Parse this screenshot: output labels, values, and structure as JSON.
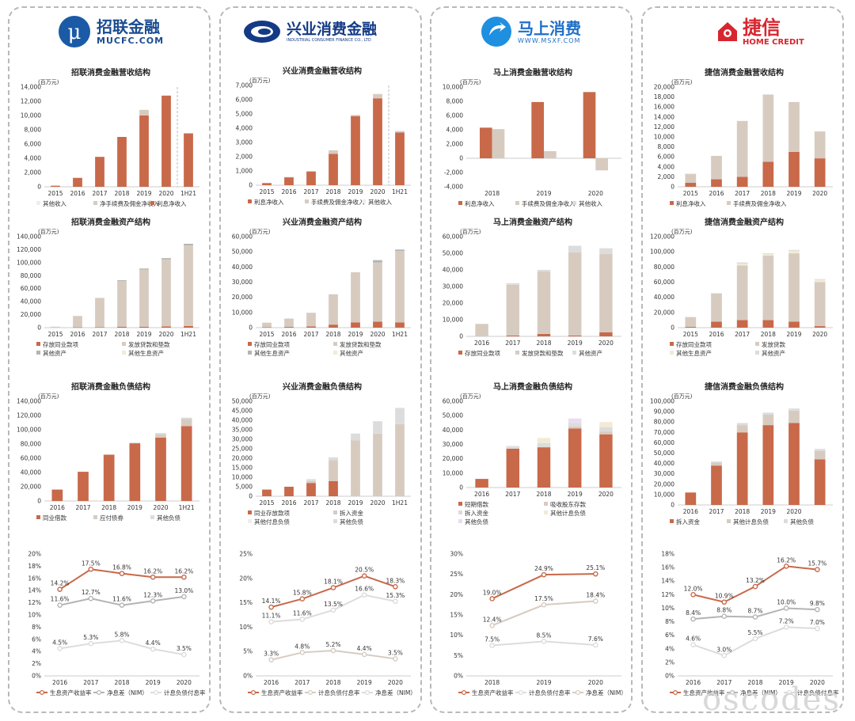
{
  "colors": {
    "interest": "#c8694a",
    "fee": "#d7cbc0",
    "other": "#f0eeea",
    "gray": "#b4b4b4",
    "lightgray": "#dcdcdc",
    "yellow": "#f3ead6",
    "pink": "#eadcf0",
    "dash": "#bbbbbb"
  },
  "logos": [
    {
      "cn": "招联金融",
      "en": "MUCFC.COM",
      "icon": "mu-circle-icon"
    },
    {
      "cn": "兴业消费金融",
      "en": "INDUSTRIAL CONSUMER FINANCE CO., LTD",
      "icon": "swirl-icon"
    },
    {
      "cn": "马上消费",
      "en": "WWW.MSXF.COM",
      "icon": "arrow-drop-icon"
    },
    {
      "cn": "捷信",
      "en": "HOME CREDIT",
      "icon": "house-icon"
    }
  ],
  "watermark": "oscodes",
  "chart_data": [
    {
      "type": "bar",
      "stacked": true,
      "title": "招联消费金融营收结构",
      "unit": "(百万元)",
      "categories": [
        "2015",
        "2016",
        "2017",
        "2018",
        "2019",
        "2020",
        "1H21"
      ],
      "ylim": [
        0,
        14000
      ],
      "ystep": 2000,
      "divider": true,
      "series": [
        {
          "name": "利息净收入",
          "color": "interest",
          "values": [
            150,
            1250,
            4200,
            7000,
            10000,
            12800,
            7500
          ]
        },
        {
          "name": "净手续费及佣金净收入",
          "color": "fee",
          "values": [
            0,
            0,
            0,
            0,
            800,
            0,
            0
          ]
        },
        {
          "name": "其他收入",
          "color": "other",
          "values": [
            0,
            0,
            0,
            0,
            0,
            0,
            0
          ]
        }
      ],
      "legend": [
        "其他收入",
        "净手续费及佣金净收入",
        "利息净收入"
      ]
    },
    {
      "type": "bar",
      "stacked": true,
      "title": "招联消费金融资产结构",
      "unit": "(百万元)",
      "categories": [
        "2015",
        "2016",
        "2017",
        "2018",
        "2019",
        "2020",
        "1H21"
      ],
      "ylim": [
        0,
        140000
      ],
      "ystep": 20000,
      "series": [
        {
          "name": "存放同业款项",
          "color": "interest",
          "values": [
            0,
            500,
            800,
            1500,
            1500,
            2000,
            2500
          ]
        },
        {
          "name": "发放贷款和垫款",
          "color": "fee",
          "values": [
            1500,
            17500,
            45000,
            70000,
            88000,
            103000,
            124000
          ]
        },
        {
          "name": "其他资产",
          "color": "gray",
          "values": [
            0,
            0,
            0,
            1500,
            1500,
            2000,
            2500
          ]
        },
        {
          "name": "其他生息资产",
          "color": "yellow",
          "values": [
            0,
            0,
            0,
            0,
            0,
            0,
            0
          ]
        }
      ],
      "legend": [
        "存放同业款项",
        "发放贷款和垫款",
        "其他资产",
        "其他生息资产"
      ]
    },
    {
      "type": "bar",
      "stacked": true,
      "title": "招联消费金融负债结构",
      "unit": "(百万元)",
      "categories": [
        "2016",
        "2017",
        "2018",
        "2019",
        "2020",
        "1H21"
      ],
      "ylim": [
        0,
        140000
      ],
      "ystep": 20000,
      "series": [
        {
          "name": "同业借款",
          "color": "interest",
          "values": [
            16000,
            41000,
            65000,
            81000,
            89000,
            105000
          ]
        },
        {
          "name": "应付债券",
          "color": "fee",
          "values": [
            0,
            0,
            0,
            0,
            4500,
            10000
          ]
        },
        {
          "name": "其他负债",
          "color": "lightgray",
          "values": [
            0,
            0,
            0,
            1000,
            2000,
            2000
          ]
        }
      ],
      "legend": [
        "同业借款",
        "应付债券",
        "其他负债"
      ]
    },
    {
      "type": "line",
      "categories": [
        "2016",
        "2017",
        "2018",
        "2019",
        "2020"
      ],
      "ylim": [
        0,
        0.2
      ],
      "ystep": 0.02,
      "pct": true,
      "series": [
        {
          "name": "生息资产收益率",
          "color": "interest",
          "values": [
            0.142,
            0.175,
            0.168,
            0.162,
            0.162
          ],
          "labels": [
            "14.2%",
            "17.5%",
            "16.8%",
            "16.2%",
            "16.2%"
          ]
        },
        {
          "name": "净息差（NIM）",
          "color": "gray",
          "values": [
            0.116,
            0.127,
            0.116,
            0.123,
            0.13
          ],
          "labels": [
            "11.6%",
            "12.7%",
            "11.6%",
            "12.3%",
            "13.0%"
          ]
        },
        {
          "name": "计息负债付息率",
          "color": "lightgray",
          "values": [
            0.045,
            0.053,
            0.058,
            0.044,
            0.035
          ],
          "labels": [
            "4.5%",
            "5.3%",
            "5.8%",
            "4.4%",
            "3.5%"
          ]
        }
      ],
      "legend": [
        "生息资产收益率",
        "净息差（NIM）",
        "计息负债付息率"
      ]
    },
    {
      "type": "bar",
      "stacked": true,
      "title": "兴业消费金融营收结构",
      "unit": "(百万元)",
      "categories": [
        "2015",
        "2016",
        "2017",
        "2018",
        "2019",
        "2020",
        "1H21"
      ],
      "ylim": [
        0,
        7000
      ],
      "ystep": 1000,
      "divider": true,
      "series": [
        {
          "name": "利息净收入",
          "color": "interest",
          "values": [
            150,
            550,
            950,
            2200,
            4850,
            6100,
            3700
          ]
        },
        {
          "name": "手续费及佣金净收入",
          "color": "fee",
          "values": [
            0,
            30,
            50,
            250,
            80,
            300,
            100
          ]
        },
        {
          "name": "其他收入",
          "color": "other",
          "values": [
            0,
            0,
            0,
            0,
            0,
            0,
            0
          ]
        }
      ],
      "legend": [
        "利息净收入",
        "手续费及佣金净收入",
        "其他收入"
      ]
    },
    {
      "type": "bar",
      "stacked": true,
      "title": "兴业消费金融资产结构",
      "unit": "(百万元)",
      "categories": [
        "2015",
        "2016",
        "2017",
        "2018",
        "2019",
        "2020",
        "1H21"
      ],
      "ylim": [
        0,
        60000
      ],
      "ystep": 10000,
      "series": [
        {
          "name": "存放同业款项",
          "color": "interest",
          "values": [
            300,
            500,
            800,
            2000,
            3500,
            4000,
            3500
          ]
        },
        {
          "name": "发放贷款和垫款",
          "color": "fee",
          "values": [
            3000,
            5500,
            9000,
            20000,
            33000,
            39000,
            47000
          ]
        },
        {
          "name": "其他生息资产",
          "color": "gray",
          "values": [
            0,
            0,
            0,
            0,
            0,
            1500,
            1000
          ]
        },
        {
          "name": "其他资产",
          "color": "yellow",
          "values": [
            0,
            0,
            0,
            0,
            0,
            0,
            0
          ]
        }
      ],
      "legend": [
        "存放同业款项",
        "发放贷款和垫款",
        "其他生息资产",
        "其他资产"
      ]
    },
    {
      "type": "bar",
      "stacked": true,
      "title": "兴业消费金融负债结构",
      "unit": "(百万元)",
      "categories": [
        "2015",
        "2016",
        "2017",
        "2018",
        "2019",
        "2020",
        "1H21"
      ],
      "ylim": [
        0,
        50000
      ],
      "ystep": 5000,
      "series": [
        {
          "name": "同业存放款项",
          "color": "interest",
          "values": [
            3500,
            5000,
            7000,
            8000,
            0,
            0,
            0
          ]
        },
        {
          "name": "拆入资金",
          "color": "fee",
          "values": [
            0,
            0,
            1000,
            11000,
            29500,
            33000,
            38000
          ]
        },
        {
          "name": "其他付息负债",
          "color": "other",
          "values": [
            0,
            0,
            0,
            0,
            0,
            0,
            0
          ]
        },
        {
          "name": "其他负债",
          "color": "lightgray",
          "values": [
            0,
            0,
            1000,
            1500,
            3500,
            6500,
            8500
          ]
        }
      ],
      "legend": [
        "同业存放款项",
        "拆入资金",
        "其他付息负债",
        "其他负债"
      ]
    },
    {
      "type": "line",
      "categories": [
        "2016",
        "2017",
        "2018",
        "2019",
        "2020"
      ],
      "ylim": [
        0,
        0.25
      ],
      "ystep": 0.05,
      "pct": true,
      "series": [
        {
          "name": "生息资产收益率",
          "color": "interest",
          "values": [
            0.141,
            0.158,
            0.181,
            0.205,
            0.183
          ],
          "labels": [
            "14.1%",
            "15.8%",
            "18.1%",
            "20.5%",
            "18.3%"
          ]
        },
        {
          "name": "净息差（NIM）",
          "color": "lightgray",
          "values": [
            0.111,
            0.116,
            0.135,
            0.166,
            0.153
          ],
          "labels": [
            "11.1%",
            "11.6%",
            "13.5%",
            "16.6%",
            "15.3%"
          ]
        },
        {
          "name": "计息负债付息率",
          "color": "fee",
          "values": [
            0.033,
            0.048,
            0.052,
            0.044,
            0.035
          ],
          "labels": [
            "3.3%",
            "4.8%",
            "5.2%",
            "4.4%",
            "3.5%"
          ]
        }
      ],
      "legend": [
        "生息资产收益率",
        "计息负债付息率",
        "净息差（NIM）"
      ]
    },
    {
      "type": "bar",
      "stacked": true,
      "title": "马上消费金融营收结构",
      "unit": "(百万元)",
      "categories": [
        "2018",
        "2019",
        "2020"
      ],
      "ylim": [
        -4000,
        10000
      ],
      "ystep": 2000,
      "grouped": true,
      "series": [
        {
          "name": "利息净收入",
          "color": "interest",
          "values": [
            4300,
            7900,
            9300
          ]
        },
        {
          "name": "手续费及佣金净收入",
          "color": "fee",
          "values": [
            4100,
            1000,
            -1700
          ]
        },
        {
          "name": "其他收入",
          "color": "lightgray",
          "values": [
            0,
            0,
            0
          ]
        }
      ],
      "legend": [
        "利息净收入",
        "手续费及佣金净收入",
        "其他收入"
      ]
    },
    {
      "type": "bar",
      "stacked": true,
      "title": "马上消费金融资产结构",
      "unit": "(百万元)",
      "categories": [
        "2016",
        "2017",
        "2018",
        "2019",
        "2020"
      ],
      "ylim": [
        0,
        60000
      ],
      "ystep": 10000,
      "series": [
        {
          "name": "存放同业款项",
          "color": "interest",
          "values": [
            0,
            500,
            1500,
            500,
            2500
          ]
        },
        {
          "name": "发放贷款和垫款",
          "color": "fee",
          "values": [
            7500,
            30500,
            37500,
            50000,
            47000
          ]
        },
        {
          "name": "其他资产",
          "color": "lightgray",
          "values": [
            0,
            1000,
            1000,
            4000,
            3500
          ]
        }
      ],
      "legend": [
        "存放同业款项",
        "发放贷款和垫款",
        "其他资产"
      ]
    },
    {
      "type": "bar",
      "stacked": true,
      "title": "马上消费金融负债结构",
      "unit": "(百万元)",
      "categories": [
        "2016",
        "2017",
        "2018",
        "2019",
        "2020"
      ],
      "ylim": [
        0,
        60000
      ],
      "ystep": 10000,
      "series": [
        {
          "name": "短期借款",
          "color": "interest",
          "values": [
            6000,
            27000,
            28000,
            41000,
            37000
          ]
        },
        {
          "name": "吸收股东存款",
          "color": "fee",
          "values": [
            0,
            0,
            0,
            1500,
            2000
          ]
        },
        {
          "name": "拆入资金",
          "color": "lightgray",
          "values": [
            0,
            1500,
            3000,
            2500,
            3000
          ]
        },
        {
          "name": "其他计息负债",
          "color": "yellow",
          "values": [
            0,
            0,
            3500,
            0,
            3500
          ]
        },
        {
          "name": "其他负债",
          "color": "pink",
          "values": [
            0,
            500,
            0,
            3000,
            0
          ]
        }
      ],
      "legend": [
        "短期借款",
        "吸收股东存款",
        "拆入资金",
        "其他计息负债",
        "其他负债"
      ]
    },
    {
      "type": "line",
      "categories": [
        "2018",
        "2019",
        "2020"
      ],
      "ylim": [
        0,
        0.3
      ],
      "ystep": 0.05,
      "pct": true,
      "series": [
        {
          "name": "生息资产收益率",
          "color": "interest",
          "values": [
            0.19,
            0.249,
            0.251
          ],
          "labels": [
            "19.0%",
            "24.9%",
            "25.1%"
          ]
        },
        {
          "name": "计息负债付息率",
          "color": "lightgray",
          "values": [
            0.075,
            0.085,
            0.076
          ],
          "labels": [
            "7.5%",
            "8.5%",
            "7.6%"
          ]
        },
        {
          "name": "净息差（NIM）",
          "color": "fee",
          "values": [
            0.124,
            0.175,
            0.184
          ],
          "labels": [
            "12.4%",
            "17.5%",
            "18.4%"
          ]
        }
      ],
      "legend": [
        "生息资产收益率",
        "计息负债付息率",
        "净息差（NIM）"
      ]
    },
    {
      "type": "bar",
      "stacked": true,
      "title": "捷信消费金融营收结构",
      "unit": "(百万元)",
      "categories": [
        "2015",
        "2016",
        "2017",
        "2018",
        "2019",
        "2020"
      ],
      "ylim": [
        0,
        20000
      ],
      "ystep": 2000,
      "series": [
        {
          "name": "利息净收入",
          "color": "interest",
          "values": [
            800,
            1500,
            2000,
            5000,
            7000,
            5700
          ]
        },
        {
          "name": "手续费及佣金净收入",
          "color": "fee",
          "values": [
            1800,
            4700,
            11200,
            13500,
            10000,
            5400
          ]
        }
      ],
      "legend": [
        "利息净收入",
        "手续费及佣金净收入"
      ]
    },
    {
      "type": "bar",
      "stacked": true,
      "title": "捷信消费金融资产结构",
      "unit": "(百万元)",
      "categories": [
        "2015",
        "2016",
        "2017",
        "2018",
        "2019",
        "2020"
      ],
      "ylim": [
        0,
        120000
      ],
      "ystep": 20000,
      "series": [
        {
          "name": "存放同业款项",
          "color": "interest",
          "values": [
            1000,
            8000,
            10000,
            10000,
            8000,
            2000
          ]
        },
        {
          "name": "发放贷款",
          "color": "fee",
          "values": [
            13000,
            37000,
            72000,
            85000,
            90000,
            58000
          ]
        },
        {
          "name": "其他生息资产",
          "color": "yellow",
          "values": [
            0,
            0,
            2500,
            2000,
            3000,
            3000
          ]
        },
        {
          "name": "其他资产",
          "color": "lightgray",
          "values": [
            0,
            500,
            1500,
            1000,
            1500,
            1000
          ]
        }
      ],
      "legend": [
        "存放同业款项",
        "发放贷款",
        "其他生息资产",
        "其他资产"
      ]
    },
    {
      "type": "bar",
      "stacked": true,
      "title": "捷信消费金融负债结构",
      "unit": "(百万元)",
      "categories": [
        "2016",
        "2017",
        "2018",
        "2019",
        "2020",
        ""
      ],
      "ylim": [
        0,
        100000
      ],
      "ystep": 10000,
      "series": [
        {
          "name": "拆入资金",
          "color": "interest",
          "values": [
            12000,
            38000,
            70000,
            77000,
            79000,
            44000
          ]
        },
        {
          "name": "其他计息负债",
          "color": "fee",
          "values": [
            0,
            3000,
            7000,
            10000,
            12000,
            8000
          ]
        },
        {
          "name": "其他负债",
          "color": "lightgray",
          "values": [
            0,
            1000,
            2000,
            2000,
            2000,
            2000
          ]
        }
      ],
      "legend": [
        "拆入资金",
        "其他计息负债",
        "其他负债"
      ]
    },
    {
      "type": "line",
      "categories": [
        "2016",
        "2017",
        "2018",
        "2019",
        "2020"
      ],
      "ylim": [
        0,
        0.18
      ],
      "ystep": 0.02,
      "pct": true,
      "series": [
        {
          "name": "生息资产收益率",
          "color": "interest",
          "values": [
            0.12,
            0.109,
            0.132,
            0.162,
            0.157
          ],
          "labels": [
            "12.0%",
            "10.9%",
            "13.2%",
            "16.2%",
            "15.7%"
          ]
        },
        {
          "name": "净息差（NIM）",
          "color": "gray",
          "values": [
            0.084,
            0.088,
            0.087,
            0.1,
            0.098
          ],
          "labels": [
            "8.4%",
            "8.8%",
            "8.7%",
            "10.0%",
            "9.8%"
          ]
        },
        {
          "name": "计息负债付息率",
          "color": "lightgray",
          "values": [
            0.046,
            0.03,
            0.055,
            0.072,
            0.07
          ],
          "labels": [
            "4.6%",
            "3.0%",
            "5.5%",
            "7.2%",
            "7.0%"
          ]
        }
      ],
      "legend": [
        "生息资产收益率",
        "净息差（NIM）",
        "计息负债付息率"
      ]
    }
  ]
}
